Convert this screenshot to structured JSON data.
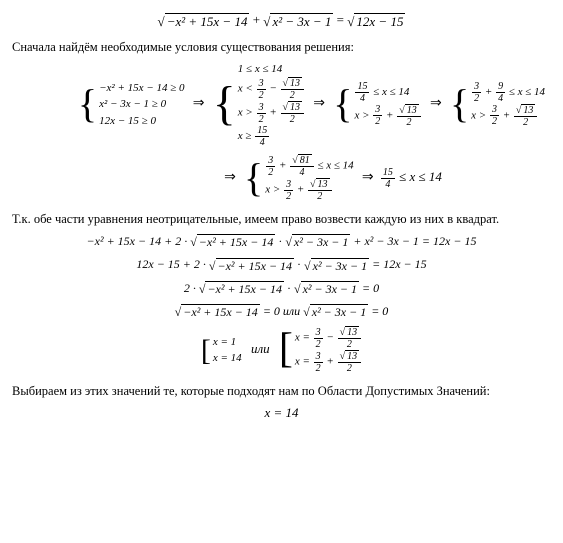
{
  "background_color": "#ffffff",
  "text_color": "#000000",
  "font_family": "Times New Roman",
  "title_equation": {
    "lhs_rad1": "−x² + 15x − 14",
    "lhs_rad2": "x² − 3x − 1",
    "rhs_rad": "12x − 15"
  },
  "para1": "Сначала найдём необходимые условия существования решения:",
  "system1": {
    "row1": "−x² + 15x − 14 ≥ 0",
    "row2": "x² − 3x − 1 ≥ 0",
    "row3": "12x − 15 ≥ 0"
  },
  "system2": {
    "r1": "1 ≤ x ≤ 14",
    "r2a": "x <",
    "r2_num": "3",
    "r2_den": "2",
    "r2_minus": "−",
    "r2_sq": "13",
    "r2_d2": "2",
    "r3a": "x >",
    "r3_num": "3",
    "r3_den": "2",
    "r3_plus": "+",
    "r3_sq": "13",
    "r3_d2": "2",
    "r4a": "x ≥",
    "r4_num": "15",
    "r4_den": "4"
  },
  "system3": {
    "r1_a": "15",
    "r1_b": "4",
    "r1_mid": "≤ x ≤ 14",
    "r2a": "x >",
    "r2_num": "3",
    "r2_den": "2",
    "r2_plus": "+",
    "r2_sq": "13",
    "r2_d2": "2"
  },
  "system4": {
    "r1_a": "3",
    "r1_b": "2",
    "r1_plus": "+",
    "r1_c": "9",
    "r1_d": "4",
    "r1_tail": "≤ x ≤ 14",
    "r2a": "x >",
    "r2_num": "3",
    "r2_den": "2",
    "r2_plus": "+",
    "r2_sq": "13",
    "r2_d2": "2"
  },
  "system5": {
    "r1_a": "3",
    "r1_b": "2",
    "r1_plus": "+",
    "r1_sq": "81",
    "r1_d": "4",
    "r1_tail": "≤ x ≤ 14",
    "r2a": "x >",
    "r2_num": "3",
    "r2_den": "2",
    "r2_plus": "+",
    "r2_sq": "13",
    "r2_d2": "2"
  },
  "final_range": {
    "a": "15",
    "b": "4",
    "tail": "≤ x ≤ 14"
  },
  "para2": "Т.к. обе части уравнения неотрицательные,  имеем право возвести каждую из них в квадрат.",
  "steps": {
    "s1_lhs": "−x² + 15x − 14 + 2 ·",
    "s1_r1": "−x² + 15x − 14",
    "s1_r2": "x² − 3x − 1",
    "s1_tail": "+ x² − 3x − 1 = 12x − 15",
    "s2_lhs": "12x − 15 + 2 ·",
    "s2_tail": "= 12x − 15",
    "s3_lhs": "2 ·",
    "s3_tail": "= 0",
    "s4_r1": "−x² + 15x − 14",
    "s4_mid": "= 0 или",
    "s4_r2": "x² − 3x − 1",
    "s4_tail": "= 0"
  },
  "answers": {
    "left_r1": "x = 1",
    "left_r2": "x = 14",
    "mid": "или",
    "right_r1a": "x =",
    "r1_num": "3",
    "r1_den": "2",
    "r1_op": "−",
    "r1_sq": "13",
    "r1_d2": "2",
    "right_r2a": "x =",
    "r2_num": "3",
    "r2_den": "2",
    "r2_op": "+",
    "r2_sq": "13",
    "r2_d2": "2"
  },
  "para3": "Выбираем из этих значений те, которые подходят нам по Области Допустимых Значений:",
  "final_answer": "x = 14"
}
